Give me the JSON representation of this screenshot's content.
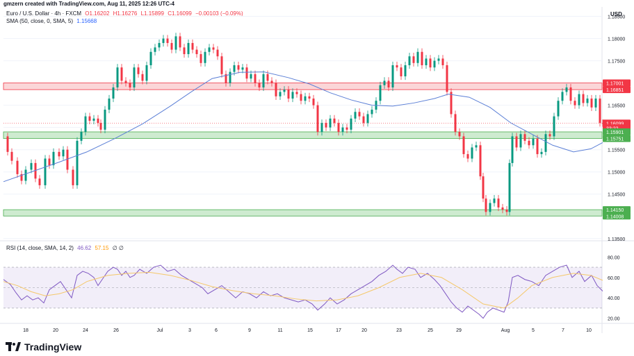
{
  "header": {
    "creator": "gmzern created with TradingView.com, Aug 11, 2025 12:26 UTC-4",
    "symbol": "Euro / U.S. Dollar · 4h · FXCM",
    "ohlc": {
      "o": "O1.16202",
      "h": "H1.16276",
      "l": "L1.15899",
      "c": "C1.16099",
      "chg": "−0.00103 (−0.09%)"
    },
    "sma_label": "SMA (50, close, 0, SMA, 5)",
    "sma_value": "1.15668",
    "rsi_label": "RSI (14, close, SMA, 14, 2)",
    "rsi_value": "46.62",
    "rsi_ma_value": "57.15",
    "rsi_tail": "∅ ∅"
  },
  "currency": "USD",
  "brand": "TradingView",
  "colors": {
    "up": "#089981",
    "down": "#f23645",
    "sma": "#5b7fd6",
    "rsi": "#7e57c2",
    "rsi_ma": "#f5c86a",
    "resistance_zone": "#f7b4b8",
    "support_zone": "#a5dba9"
  },
  "chart_data": {
    "type": "candlestick",
    "instrument": "EUR/USD",
    "timeframe": "4h",
    "price_axis": {
      "ticks": [
        "1.18500",
        "1.18000",
        "1.17500",
        "1.17000",
        "1.16500",
        "1.16000",
        "1.15500",
        "1.15000",
        "1.14500",
        "1.14000",
        "1.13500"
      ],
      "ylim": [
        1.1345,
        1.1868
      ]
    },
    "price_labels": [
      {
        "text": "1.17001",
        "value": 1.17001,
        "type": "red"
      },
      {
        "text": "1.16851",
        "value": 1.16851,
        "type": "red"
      },
      {
        "text": "1.16099",
        "value": 1.16099,
        "type": "red"
      },
      {
        "text": "33:22",
        "value": 1.1599,
        "type": "red"
      },
      {
        "text": "1.15901",
        "value": 1.15901,
        "type": "green"
      },
      {
        "text": "1.15751",
        "value": 1.15751,
        "type": "green"
      },
      {
        "text": "1.14150",
        "value": 1.1415,
        "type": "green"
      },
      {
        "text": "1.14008",
        "value": 1.14008,
        "type": "green"
      }
    ],
    "zones": [
      {
        "from": 1.16851,
        "to": 1.17001,
        "type": "resistance"
      },
      {
        "from": 1.15751,
        "to": 1.15901,
        "type": "support"
      },
      {
        "from": 1.14008,
        "to": 1.1415,
        "type": "support"
      }
    ],
    "x_ticks": [
      "18",
      "20",
      "24",
      "26",
      "Jul",
      "3",
      "6",
      "9",
      "11",
      "15",
      "17",
      "20",
      "23",
      "25",
      "29",
      "Aug",
      "5",
      "7",
      "10"
    ],
    "close_path": [
      [
        0,
        1.158
      ],
      [
        6,
        1.1545
      ],
      [
        12,
        1.1525
      ],
      [
        20,
        1.1495
      ],
      [
        26,
        1.148
      ],
      [
        32,
        1.1505
      ],
      [
        40,
        1.152
      ],
      [
        46,
        1.1485
      ],
      [
        52,
        1.147
      ],
      [
        60,
        1.153
      ],
      [
        66,
        1.1515
      ],
      [
        72,
        1.1545
      ],
      [
        80,
        1.1535
      ],
      [
        86,
        1.155
      ],
      [
        92,
        1.1505
      ],
      [
        100,
        1.147
      ],
      [
        106,
        1.157
      ],
      [
        112,
        1.159
      ],
      [
        118,
        1.1625
      ],
      [
        124,
        1.1615
      ],
      [
        130,
        1.162
      ],
      [
        136,
        1.161
      ],
      [
        140,
        1.1595
      ],
      [
        146,
        1.164
      ],
      [
        152,
        1.1665
      ],
      [
        158,
        1.169
      ],
      [
        164,
        1.1735
      ],
      [
        170,
        1.1705
      ],
      [
        176,
        1.17
      ],
      [
        182,
        1.169
      ],
      [
        188,
        1.1735
      ],
      [
        194,
        1.172
      ],
      [
        200,
        1.1705
      ],
      [
        206,
        1.174
      ],
      [
        212,
        1.177
      ],
      [
        218,
        1.178
      ],
      [
        224,
        1.179
      ],
      [
        230,
        1.18
      ],
      [
        236,
        1.179
      ],
      [
        242,
        1.1775
      ],
      [
        248,
        1.1805
      ],
      [
        254,
        1.178
      ],
      [
        260,
        1.1765
      ],
      [
        266,
        1.179
      ],
      [
        272,
        1.1775
      ],
      [
        278,
        1.1765
      ],
      [
        284,
        1.1745
      ],
      [
        290,
        1.177
      ],
      [
        296,
        1.178
      ],
      [
        302,
        1.1775
      ],
      [
        308,
        1.176
      ],
      [
        314,
        1.172
      ],
      [
        320,
        1.17
      ],
      [
        326,
        1.1725
      ],
      [
        332,
        1.174
      ],
      [
        338,
        1.173
      ],
      [
        344,
        1.1735
      ],
      [
        350,
        1.171
      ],
      [
        356,
        1.172
      ],
      [
        362,
        1.17
      ],
      [
        368,
        1.169
      ],
      [
        374,
        1.172
      ],
      [
        380,
        1.1705
      ],
      [
        386,
        1.17
      ],
      [
        392,
        1.167
      ],
      [
        398,
        1.168
      ],
      [
        404,
        1.1685
      ],
      [
        410,
        1.1665
      ],
      [
        416,
        1.168
      ],
      [
        422,
        1.1675
      ],
      [
        428,
        1.166
      ],
      [
        434,
        1.167
      ],
      [
        440,
        1.1665
      ],
      [
        446,
        1.165
      ],
      [
        452,
        1.159
      ],
      [
        458,
        1.161
      ],
      [
        464,
        1.16
      ],
      [
        470,
        1.162
      ],
      [
        476,
        1.161
      ],
      [
        482,
        1.159
      ],
      [
        488,
        1.16
      ],
      [
        494,
        1.1595
      ],
      [
        500,
        1.162
      ],
      [
        506,
        1.1635
      ],
      [
        512,
        1.1625
      ],
      [
        518,
        1.161
      ],
      [
        524,
        1.163
      ],
      [
        530,
        1.164
      ],
      [
        536,
        1.166
      ],
      [
        542,
        1.1695
      ],
      [
        548,
        1.1705
      ],
      [
        554,
        1.169
      ],
      [
        560,
        1.174
      ],
      [
        566,
        1.1735
      ],
      [
        572,
        1.1715
      ],
      [
        578,
        1.174
      ],
      [
        584,
        1.176
      ],
      [
        590,
        1.1745
      ],
      [
        596,
        1.177
      ],
      [
        602,
        1.174
      ],
      [
        608,
        1.1755
      ],
      [
        614,
        1.1735
      ],
      [
        620,
        1.175
      ],
      [
        626,
        1.1755
      ],
      [
        632,
        1.174
      ],
      [
        638,
        1.168
      ],
      [
        644,
        1.163
      ],
      [
        650,
        1.159
      ],
      [
        656,
        1.158
      ],
      [
        662,
        1.154
      ],
      [
        668,
        1.153
      ],
      [
        674,
        1.1555
      ],
      [
        680,
        1.156
      ],
      [
        686,
        1.149
      ],
      [
        690,
        1.144
      ],
      [
        694,
        1.141
      ],
      [
        700,
        1.143
      ],
      [
        706,
        1.144
      ],
      [
        712,
        1.142
      ],
      [
        718,
        1.1415
      ],
      [
        724,
        1.141
      ],
      [
        728,
        1.152
      ],
      [
        732,
        1.158
      ],
      [
        738,
        1.1555
      ],
      [
        744,
        1.1585
      ],
      [
        750,
        1.157
      ],
      [
        756,
        1.156
      ],
      [
        762,
        1.1575
      ],
      [
        768,
        1.154
      ],
      [
        774,
        1.1545
      ],
      [
        780,
        1.1585
      ],
      [
        786,
        1.158
      ],
      [
        792,
        1.1625
      ],
      [
        798,
        1.166
      ],
      [
        804,
        1.168
      ],
      [
        810,
        1.169
      ],
      [
        816,
        1.166
      ],
      [
        822,
        1.165
      ],
      [
        828,
        1.1675
      ],
      [
        834,
        1.1655
      ],
      [
        840,
        1.1665
      ],
      [
        846,
        1.1645
      ],
      [
        852,
        1.1665
      ],
      [
        858,
        1.161
      ],
      [
        862,
        1.16099
      ]
    ],
    "sma_path": [
      [
        0,
        1.1478
      ],
      [
        40,
        1.15
      ],
      [
        80,
        1.1522
      ],
      [
        120,
        1.1545
      ],
      [
        160,
        1.1575
      ],
      [
        200,
        1.1608
      ],
      [
        240,
        1.1648
      ],
      [
        270,
        1.168
      ],
      [
        300,
        1.171
      ],
      [
        340,
        1.1724
      ],
      [
        375,
        1.1725
      ],
      [
        410,
        1.1712
      ],
      [
        440,
        1.1698
      ],
      [
        470,
        1.1678
      ],
      [
        500,
        1.1662
      ],
      [
        530,
        1.165
      ],
      [
        560,
        1.1648
      ],
      [
        590,
        1.1655
      ],
      [
        620,
        1.1665
      ],
      [
        640,
        1.1675
      ],
      [
        670,
        1.1668
      ],
      [
        700,
        1.1645
      ],
      [
        730,
        1.161
      ],
      [
        760,
        1.1585
      ],
      [
        790,
        1.156
      ],
      [
        820,
        1.1545
      ],
      [
        845,
        1.1552
      ],
      [
        862,
        1.1566
      ]
    ],
    "rsi": {
      "axis_ticks": [
        "80.00",
        "60.00",
        "40.00",
        "20.00"
      ],
      "ylim": [
        15,
        85
      ],
      "band": [
        30,
        70
      ],
      "mid": 50,
      "rsi_path": [
        [
          0,
          58
        ],
        [
          10,
          53
        ],
        [
          18,
          45
        ],
        [
          26,
          38
        ],
        [
          34,
          42
        ],
        [
          42,
          38
        ],
        [
          50,
          40
        ],
        [
          58,
          35
        ],
        [
          66,
          48
        ],
        [
          74,
          52
        ],
        [
          82,
          56
        ],
        [
          90,
          48
        ],
        [
          98,
          40
        ],
        [
          106,
          62
        ],
        [
          114,
          66
        ],
        [
          122,
          64
        ],
        [
          130,
          60
        ],
        [
          136,
          52
        ],
        [
          142,
          58
        ],
        [
          150,
          66
        ],
        [
          158,
          70
        ],
        [
          164,
          68
        ],
        [
          170,
          62
        ],
        [
          176,
          66
        ],
        [
          182,
          60
        ],
        [
          188,
          62
        ],
        [
          196,
          68
        ],
        [
          206,
          64
        ],
        [
          216,
          70
        ],
        [
          226,
          72
        ],
        [
          236,
          66
        ],
        [
          246,
          68
        ],
        [
          256,
          62
        ],
        [
          266,
          58
        ],
        [
          276,
          54
        ],
        [
          286,
          50
        ],
        [
          294,
          44
        ],
        [
          304,
          48
        ],
        [
          314,
          52
        ],
        [
          324,
          46
        ],
        [
          334,
          40
        ],
        [
          344,
          46
        ],
        [
          354,
          44
        ],
        [
          364,
          40
        ],
        [
          374,
          46
        ],
        [
          384,
          42
        ],
        [
          394,
          44
        ],
        [
          404,
          40
        ],
        [
          414,
          38
        ],
        [
          424,
          36
        ],
        [
          434,
          38
        ],
        [
          444,
          34
        ],
        [
          452,
          28
        ],
        [
          462,
          34
        ],
        [
          470,
          40
        ],
        [
          480,
          34
        ],
        [
          490,
          38
        ],
        [
          500,
          44
        ],
        [
          510,
          48
        ],
        [
          520,
          52
        ],
        [
          530,
          56
        ],
        [
          540,
          62
        ],
        [
          550,
          66
        ],
        [
          560,
          72
        ],
        [
          566,
          68
        ],
        [
          574,
          64
        ],
        [
          582,
          70
        ],
        [
          592,
          68
        ],
        [
          600,
          60
        ],
        [
          610,
          64
        ],
        [
          620,
          58
        ],
        [
          628,
          52
        ],
        [
          636,
          44
        ],
        [
          644,
          36
        ],
        [
          652,
          30
        ],
        [
          660,
          26
        ],
        [
          668,
          32
        ],
        [
          676,
          28
        ],
        [
          684,
          24
        ],
        [
          690,
          20
        ],
        [
          696,
          26
        ],
        [
          704,
          30
        ],
        [
          712,
          28
        ],
        [
          720,
          26
        ],
        [
          726,
          36
        ],
        [
          732,
          60
        ],
        [
          740,
          62
        ],
        [
          750,
          58
        ],
        [
          760,
          56
        ],
        [
          770,
          52
        ],
        [
          780,
          62
        ],
        [
          790,
          66
        ],
        [
          800,
          70
        ],
        [
          810,
          72
        ],
        [
          818,
          60
        ],
        [
          828,
          66
        ],
        [
          836,
          56
        ],
        [
          846,
          62
        ],
        [
          854,
          52
        ],
        [
          862,
          46.62
        ]
      ],
      "ma_path": [
        [
          0,
          56
        ],
        [
          20,
          52
        ],
        [
          40,
          46
        ],
        [
          60,
          42
        ],
        [
          80,
          44
        ],
        [
          100,
          48
        ],
        [
          120,
          56
        ],
        [
          150,
          62
        ],
        [
          180,
          64
        ],
        [
          210,
          65
        ],
        [
          240,
          62
        ],
        [
          270,
          57
        ],
        [
          300,
          51
        ],
        [
          330,
          47
        ],
        [
          360,
          44
        ],
        [
          390,
          42
        ],
        [
          420,
          39
        ],
        [
          450,
          37
        ],
        [
          480,
          38
        ],
        [
          510,
          42
        ],
        [
          540,
          50
        ],
        [
          570,
          60
        ],
        [
          600,
          64
        ],
        [
          630,
          60
        ],
        [
          660,
          48
        ],
        [
          690,
          34
        ],
        [
          720,
          30
        ],
        [
          740,
          40
        ],
        [
          760,
          52
        ],
        [
          790,
          60
        ],
        [
          820,
          64
        ],
        [
          845,
          62
        ],
        [
          862,
          57.15
        ]
      ]
    }
  }
}
